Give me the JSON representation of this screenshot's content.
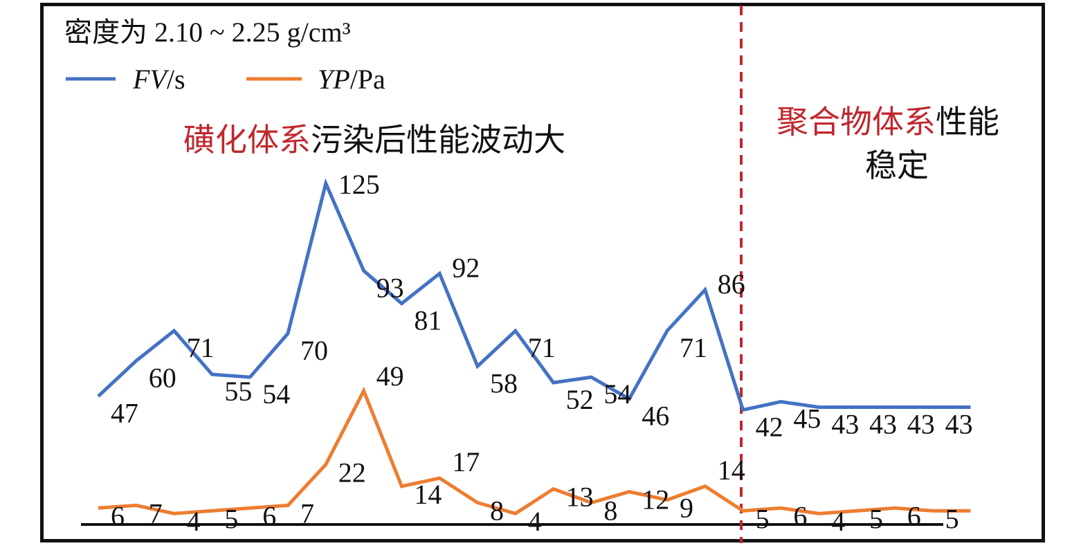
{
  "chart_data": {
    "type": "line",
    "title": "",
    "xlabel": "",
    "ylabel": "",
    "x": [
      1,
      2,
      3,
      4,
      5,
      6,
      7,
      8,
      9,
      10,
      11,
      12,
      13,
      14,
      15,
      16,
      17,
      18,
      19,
      20,
      21,
      22,
      23,
      24
    ],
    "ylim": [
      0,
      140
    ],
    "grid": false,
    "legend": {
      "title_text": "密度为 2.10 ~ 2.25 g/cm³",
      "placement": "top-left",
      "items": [
        {
          "name": "FV",
          "unit": "/s",
          "color": "#4472c4"
        },
        {
          "name": "YP",
          "unit": "/Pa",
          "color": "#ed7d31"
        }
      ]
    },
    "series": [
      {
        "name": "FV/s",
        "values": [
          47,
          60,
          71,
          55,
          54,
          70,
          125,
          93,
          81,
          92,
          58,
          71,
          52,
          54,
          46,
          71,
          86,
          42,
          45,
          43,
          43,
          43,
          43,
          43
        ],
        "color": "#4472c4"
      },
      {
        "name": "YP/Pa",
        "values": [
          6,
          7,
          4,
          5,
          6,
          7,
          22,
          49,
          14,
          17,
          8,
          4,
          13,
          8,
          12,
          9,
          14,
          5,
          6,
          4,
          5,
          6,
          5,
          5
        ],
        "color": "#ed7d31"
      }
    ],
    "fv_labels": [
      "47",
      "60",
      "71",
      "55",
      "54",
      "70",
      "125",
      "93",
      "81",
      "92",
      "58",
      "71",
      "52",
      "54",
      "46",
      "71",
      "86",
      "42",
      "45",
      "43",
      "43",
      "43",
      "43"
    ],
    "yp_labels": [
      "6",
      "7",
      "4",
      "5",
      "6",
      "7",
      "22",
      "49",
      "14",
      "17",
      "8",
      "4",
      "13",
      "8",
      "12",
      "9",
      "14",
      "5",
      "6",
      "4",
      "5",
      "6",
      "5"
    ],
    "annotations": {
      "left_region": {
        "highlight": "磺化体系",
        "rest": "污染后性能波动大",
        "highlight_color": "#c0272d"
      },
      "right_region": {
        "highlight": "聚合物体系",
        "rest_line1": "性能",
        "line2": "稳定",
        "highlight_color": "#c0272d"
      },
      "divider_color": "#c0272d"
    }
  }
}
